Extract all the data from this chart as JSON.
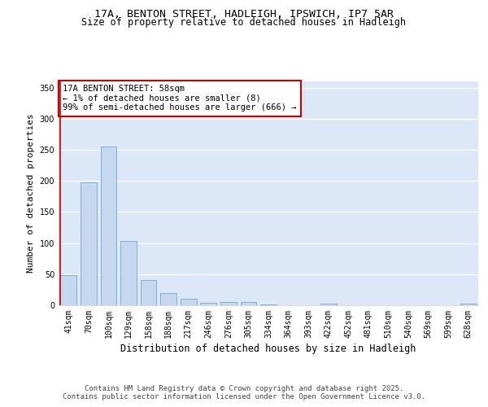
{
  "title_line1": "17A, BENTON STREET, HADLEIGH, IPSWICH, IP7 5AR",
  "title_line2": "Size of property relative to detached houses in Hadleigh",
  "xlabel": "Distribution of detached houses by size in Hadleigh",
  "ylabel": "Number of detached properties",
  "categories": [
    "41sqm",
    "70sqm",
    "100sqm",
    "129sqm",
    "158sqm",
    "188sqm",
    "217sqm",
    "246sqm",
    "276sqm",
    "305sqm",
    "334sqm",
    "364sqm",
    "393sqm",
    "422sqm",
    "452sqm",
    "481sqm",
    "510sqm",
    "540sqm",
    "569sqm",
    "599sqm",
    "628sqm"
  ],
  "values": [
    48,
    198,
    255,
    104,
    41,
    19,
    10,
    4,
    5,
    5,
    1,
    0,
    0,
    3,
    0,
    0,
    0,
    0,
    0,
    0,
    3
  ],
  "bar_color": "#c5d8f0",
  "bar_edge_color": "#6aaad4",
  "highlight_color": "#cc0000",
  "ylim": [
    0,
    360
  ],
  "yticks": [
    0,
    50,
    100,
    150,
    200,
    250,
    300,
    350
  ],
  "annotation_text": "17A BENTON STREET: 58sqm\n← 1% of detached houses are smaller (8)\n99% of semi-detached houses are larger (666) →",
  "annotation_box_edge_color": "#cc0000",
  "background_color": "#dce8f8",
  "footer_text": "Contains HM Land Registry data © Crown copyright and database right 2025.\nContains public sector information licensed under the Open Government Licence v3.0.",
  "title_fontsize": 9.5,
  "subtitle_fontsize": 8.5,
  "ylabel_fontsize": 8,
  "xlabel_fontsize": 8.5,
  "tick_fontsize": 7,
  "annotation_fontsize": 7.5,
  "footer_fontsize": 6.5
}
